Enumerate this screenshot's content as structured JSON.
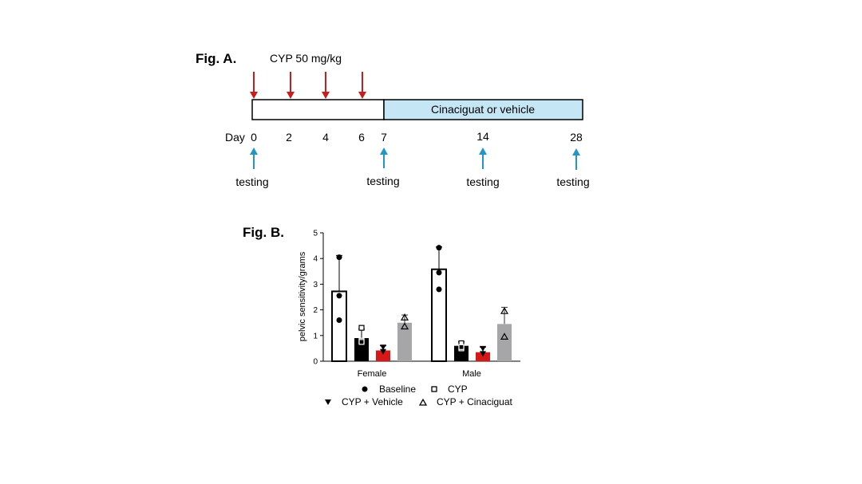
{
  "figA": {
    "label": "Fig. A.",
    "dose_label": "CYP 50 mg/kg",
    "treatment_label": "Cinaciguat or vehicle",
    "day_prefix": "Day",
    "injection_days": [
      "0",
      "2",
      "4",
      "6"
    ],
    "testing_days": [
      "0",
      "7",
      "14",
      "28"
    ],
    "day_ticks": [
      "0",
      "2",
      "4",
      "6",
      "7",
      "14",
      "28"
    ],
    "testing_label": "testing",
    "colors": {
      "injection_arrow": "#c91c1c",
      "testing_arrow": "#2396c8",
      "treatment_fill": "#c5e6f5"
    }
  },
  "figB": {
    "label": "Fig. B."
  },
  "chart_data": {
    "type": "bar",
    "title": "",
    "xlabel": "",
    "ylabel": "pelvic sensitivity/grams",
    "ylim": [
      0,
      5
    ],
    "yticks": [
      "0",
      "1",
      "2",
      "3",
      "4",
      "5"
    ],
    "categories": [
      "Female",
      "Male"
    ],
    "legend_position": "bottom",
    "series": [
      {
        "name": "Baseline",
        "marker": "circle",
        "fill": "#ffffff",
        "values": [
          2.72,
          3.58
        ],
        "error": [
          1.4,
          0.87
        ],
        "points": [
          [
            4.05,
            2.55,
            1.6
          ],
          [
            4.42,
            3.45,
            2.8
          ]
        ]
      },
      {
        "name": "CYP",
        "marker": "square",
        "fill": "#000000",
        "values": [
          0.9,
          0.6
        ],
        "error": [
          0.35,
          0.15
        ],
        "points": [
          [
            1.3,
            0.8,
            0.75
          ],
          [
            0.7,
            0.5,
            0.55
          ]
        ]
      },
      {
        "name": "CYP + Vehicle",
        "marker": "triangle-down",
        "fill": "#d71818",
        "values": [
          0.42,
          0.35
        ],
        "error": [
          0.18,
          0.2
        ],
        "points": [
          [
            0.55,
            0.38
          ],
          [
            0.5,
            0.3
          ]
        ]
      },
      {
        "name": "CYP + Cinaciguat",
        "marker": "triangle-up",
        "fill": "#a6a6a8",
        "values": [
          1.5,
          1.45
        ],
        "error": [
          0.3,
          0.65
        ],
        "points": [
          [
            1.7,
            1.35
          ],
          [
            1.95,
            0.95
          ]
        ]
      }
    ]
  }
}
